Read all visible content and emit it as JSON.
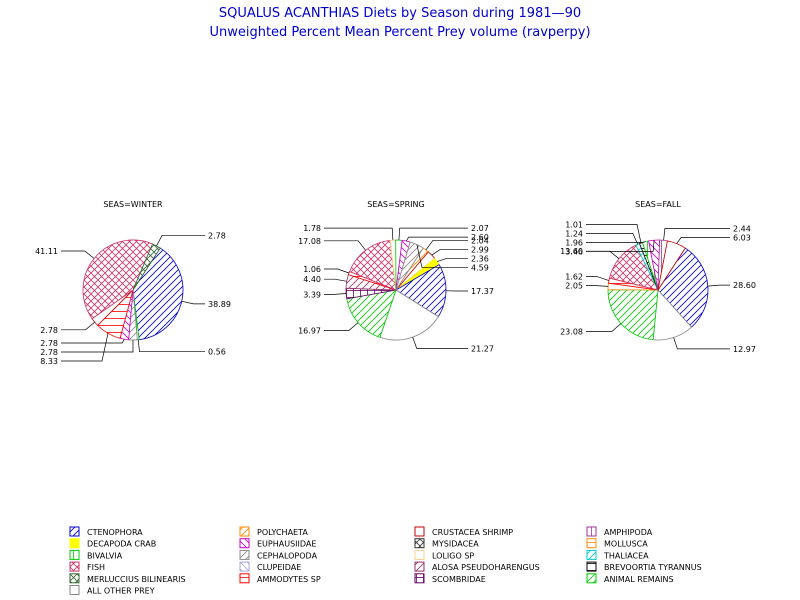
{
  "title": "SQUALUS ACANTHIAS Diets by Season during 1981—90",
  "subtitle": "Unweighted Percent Mean Percent Prey  volume (ravperpy)",
  "chart_data": {
    "type": "pie",
    "legend": [
      {
        "name": "CTENOPHORA",
        "color": "#0000cc",
        "pattern": "diag-r"
      },
      {
        "name": "DECAPODA CRAB",
        "color": "#ffff00",
        "pattern": "solid"
      },
      {
        "name": "BIVALVIA",
        "color": "#00cc00",
        "pattern": "vert"
      },
      {
        "name": "FISH",
        "color": "#cc3366",
        "pattern": "cross-diag"
      },
      {
        "name": "MERLUCCIUS BILINEARIS",
        "color": "#336633",
        "pattern": "cross-diag"
      },
      {
        "name": "ALL OTHER PREY",
        "color": "#888888",
        "pattern": "none"
      },
      {
        "name": "POLYCHAETA",
        "color": "#ff8800",
        "pattern": "diag-r"
      },
      {
        "name": "EUPHAUSIIDAE",
        "color": "#cc00cc",
        "pattern": "diag-l"
      },
      {
        "name": "CEPHALOPODA",
        "color": "#888888",
        "pattern": "diag-r"
      },
      {
        "name": "CLUPEIDAE",
        "color": "#aaaadd",
        "pattern": "diag-l"
      },
      {
        "name": "AMMODYTES SP",
        "color": "#ff0000",
        "pattern": "horiz"
      },
      {
        "name": "CRUSTACEA SHRIMP",
        "color": "#cc0000",
        "pattern": "none"
      },
      {
        "name": "MYSIDACEA",
        "color": "#333333",
        "pattern": "cross-diag"
      },
      {
        "name": "LOLIGO SP",
        "color": "#ffcc88",
        "pattern": "none"
      },
      {
        "name": "ALOSA PSEUDOHARENGUS",
        "color": "#993366",
        "pattern": "diag-r"
      },
      {
        "name": "SCOMBRIDAE",
        "color": "#660066",
        "pattern": "cross"
      },
      {
        "name": "AMPHIPODA",
        "color": "#993399",
        "pattern": "vert"
      },
      {
        "name": "MOLLUSCA",
        "color": "#ff8800",
        "pattern": "horiz"
      },
      {
        "name": "THALIACEA",
        "color": "#00cccc",
        "pattern": "diag-r"
      },
      {
        "name": "BREVOORTIA TYRANNUS",
        "color": "#000000",
        "pattern": "horiz"
      },
      {
        "name": "ANIMAL REMAINS",
        "color": "#00cc00",
        "pattern": "diag-r"
      }
    ],
    "pies": [
      {
        "label": "SEAS=WINTER",
        "slices": [
          {
            "category": "CTENOPHORA",
            "value": 38.89,
            "label": "38.89"
          },
          {
            "category": "BIVALVIA",
            "value": 0.56,
            "label": "0.56"
          },
          {
            "category": "CEPHALOPODA",
            "value": 2.78,
            "label": "2.78"
          },
          {
            "category": "EUPHAUSIIDAE",
            "value": 2.78,
            "label": "2.78"
          },
          {
            "category": "AMMODYTES SP",
            "value": 8.33,
            "label": "8.33"
          },
          {
            "category": "CRUSTACEA SHRIMP",
            "value": 2.78,
            "label": "2.78"
          },
          {
            "category": "FISH",
            "value": 41.11,
            "label": "41.11"
          },
          {
            "category": "MERLUCCIUS BILINEARIS",
            "value": 2.78,
            "label": "2.78"
          }
        ]
      },
      {
        "label": "SEAS=SPRING",
        "slices": [
          {
            "category": "POLYCHAETA",
            "value": 2.04,
            "label": "2.04"
          },
          {
            "category": "CRUSTACEA SHRIMP",
            "value": 2.99,
            "label": "2.99"
          },
          {
            "category": "DECAPODA CRAB",
            "value": 2.36,
            "label": "2.36"
          },
          {
            "category": "CTENOPHORA",
            "value": 17.37,
            "label": "17.37"
          },
          {
            "category": "ALL OTHER PREY",
            "value": 21.27,
            "label": "21.27"
          },
          {
            "category": "ANIMAL REMAINS",
            "value": 16.97,
            "label": "16.97"
          },
          {
            "category": "SCOMBRIDAE",
            "value": 3.39,
            "label": "3.39"
          },
          {
            "category": "ALOSA PSEUDOHARENGUS",
            "value": 4.4,
            "label": "4.40"
          },
          {
            "category": "AMMODYTES SP",
            "value": 1.06,
            "label": "1.06"
          },
          {
            "category": "FISH",
            "value": 17.08,
            "label": "17.08"
          },
          {
            "category": "LOLIGO SP",
            "value": 1.78,
            "label": "1.78"
          },
          {
            "category": "BIVALVIA",
            "value": 2.07,
            "label": "2.07"
          },
          {
            "category": "EUPHAUSIIDAE",
            "value": 2.6,
            "label": "2.60"
          },
          {
            "category": "CEPHALOPODA",
            "value": 4.59,
            "label": "4.59"
          }
        ]
      },
      {
        "label": "SEAS=FALL",
        "slices": [
          {
            "category": "CTENOPHORA",
            "value": 28.6,
            "label": "28.60"
          },
          {
            "category": "ALL OTHER PREY",
            "value": 12.97,
            "label": "12.97"
          },
          {
            "category": "ANIMAL REMAINS",
            "value": 23.08,
            "label": "23.08"
          },
          {
            "category": "MOLLUSCA",
            "value": 2.05,
            "label": "2.05"
          },
          {
            "category": "AMMODYTES SP",
            "value": 1.62,
            "label": "1.62"
          },
          {
            "category": "FISH",
            "value": 13.6,
            "label": "13.60"
          },
          {
            "category": "THALIACEA",
            "value": 1.24,
            "label": "1.24"
          },
          {
            "category": "BREVOORTIA TYRANNUS",
            "value": 1.01,
            "label": "1.01"
          },
          {
            "category": "BIVALVIA",
            "value": 1.96,
            "label": "1.96"
          },
          {
            "category": "EUPHAUSIIDAE",
            "value": 3.46,
            "label": "3.46"
          },
          {
            "category": "AMPHIPODA",
            "value": 2.44,
            "label": "2.44"
          },
          {
            "category": "CRUSTACEA SHRIMP",
            "value": 6.03,
            "label": "6.03"
          }
        ]
      }
    ]
  }
}
